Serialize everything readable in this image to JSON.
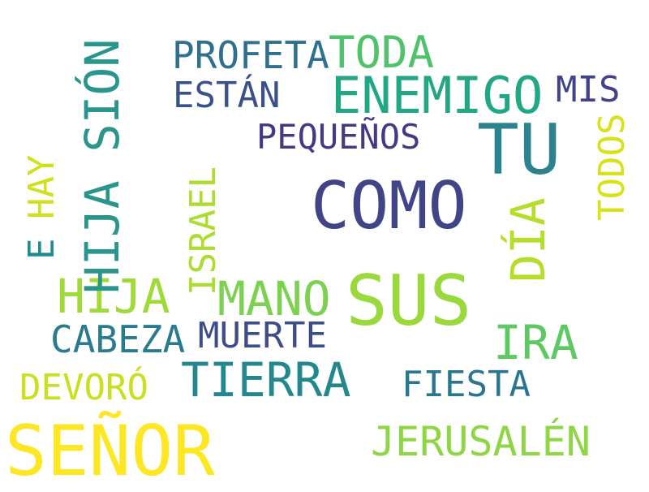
{
  "words": {
    "senor": {
      "text": "SEÑOR",
      "color": "#fde725"
    },
    "sus": {
      "text": "SUS",
      "color": "#9ad93c"
    },
    "como": {
      "text": "COMO",
      "color": "#414487"
    },
    "tu": {
      "text": "TU",
      "color": "#2c838e"
    },
    "hija_sion": {
      "text": "HIJA SIÓN",
      "color": "#2a958b"
    },
    "enemigo": {
      "text": "ENEMIGO",
      "color": "#22a785"
    },
    "toda": {
      "text": "TODA",
      "color": "#4fc26a"
    },
    "profeta": {
      "text": "PROFETA",
      "color": "#2f708e"
    },
    "estan": {
      "text": "ESTÁN",
      "color": "#3b518b"
    },
    "mis": {
      "text": "MIS",
      "color": "#404387"
    },
    "pequenos": {
      "text": "PEQUEÑOS",
      "color": "#443a83"
    },
    "dia": {
      "text": "DÍA",
      "color": "#b5de2b"
    },
    "todos": {
      "text": "TODOS",
      "color": "#d8e219"
    },
    "israel": {
      "text": "ISRAEL",
      "color": "#addc30"
    },
    "hay": {
      "text": "HAY",
      "color": "#d0e11c"
    },
    "e": {
      "text": "E",
      "color": "#228c8d"
    },
    "hija": {
      "text": "HIJA",
      "color": "#a0da39"
    },
    "mano": {
      "text": "MANO",
      "color": "#7cd250"
    },
    "cabeza": {
      "text": "CABEZA",
      "color": "#297b8e"
    },
    "muerte": {
      "text": "MUERTE",
      "color": "#3d4d8a"
    },
    "ira": {
      "text": "IRA",
      "color": "#5ec962"
    },
    "tierra": {
      "text": "TIERRA",
      "color": "#23888e"
    },
    "fiesta": {
      "text": "FIESTA",
      "color": "#2a768e"
    },
    "devoro": {
      "text": "DEVORÓ",
      "color": "#c8e020"
    },
    "jerusalen": {
      "text": "JERUSALÉN",
      "color": "#8ed645"
    }
  }
}
